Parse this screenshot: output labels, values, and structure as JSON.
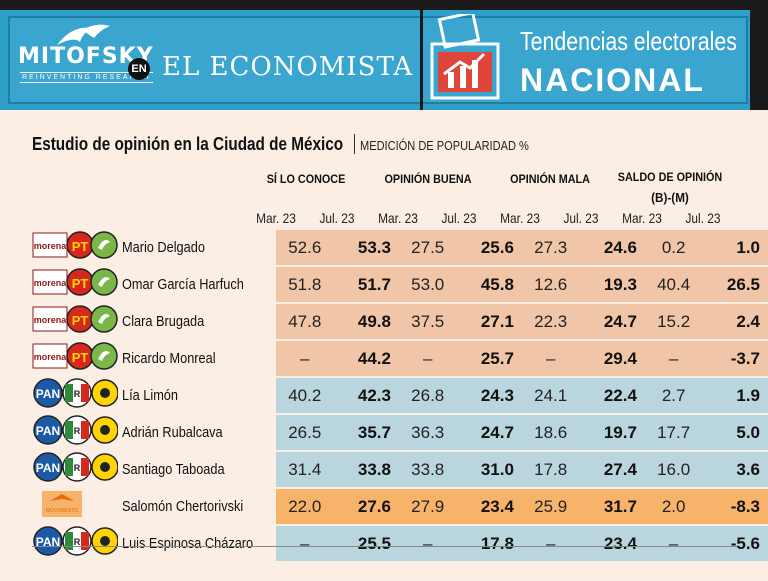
{
  "header": {
    "brand1": "MITOFSKY",
    "brand1_tagline": "REINVENTING RESEARCH",
    "connector": "EN",
    "brand2": "EL ECONOMISTA",
    "section_title": "Tendencias electorales",
    "section_subtitle": "NACIONAL"
  },
  "colors": {
    "header_blue": "#3aa6cf",
    "morena_row": "#f1c6a8",
    "pan_row": "#b9d5dd",
    "mc_row": "#f7b36a"
  },
  "chart_data": {
    "type": "table",
    "title": "Estudio de opinión en la Ciudad de México",
    "subtitle": "MEDICIÓN DE POPULARIDAD %",
    "column_groups": [
      "SÍ LO CONOCE",
      "OPINIÓN BUENA",
      "OPINIÓN MALA",
      "SALDO DE OPINIÓN",
      "(B)-(M)"
    ],
    "periods": [
      "Mar. 23",
      "Jul. 23"
    ],
    "rows": [
      {
        "coalition": "morena",
        "logos": [
          "morena",
          "PT",
          "PVEM"
        ],
        "name": "Mario Delgado",
        "values": [
          "52.6",
          "53.3",
          "27.5",
          "25.6",
          "27.3",
          "24.6",
          "0.2",
          "1.0"
        ]
      },
      {
        "coalition": "morena",
        "logos": [
          "morena",
          "PT",
          "PVEM"
        ],
        "name": "Omar García Harfuch",
        "values": [
          "51.8",
          "51.7",
          "53.0",
          "45.8",
          "12.6",
          "19.3",
          "40.4",
          "26.5"
        ]
      },
      {
        "coalition": "morena",
        "logos": [
          "morena",
          "PT",
          "PVEM"
        ],
        "name": "Clara Brugada",
        "values": [
          "47.8",
          "49.8",
          "37.5",
          "27.1",
          "22.3",
          "24.7",
          "15.2",
          "2.4"
        ]
      },
      {
        "coalition": "morena",
        "logos": [
          "morena",
          "PT",
          "PVEM"
        ],
        "name": "Ricardo Monreal",
        "values": [
          "–",
          "44.2",
          "–",
          "25.7",
          "–",
          "29.4",
          "–",
          "-3.7"
        ]
      },
      {
        "coalition": "pan",
        "logos": [
          "PAN",
          "PRI",
          "PRD"
        ],
        "name": "Lía Limón",
        "values": [
          "40.2",
          "42.3",
          "26.8",
          "24.3",
          "24.1",
          "22.4",
          "2.7",
          "1.9"
        ]
      },
      {
        "coalition": "pan",
        "logos": [
          "PAN",
          "PRI",
          "PRD"
        ],
        "name": "Adrián Rubalcava",
        "values": [
          "26.5",
          "35.7",
          "36.3",
          "24.7",
          "18.6",
          "19.7",
          "17.7",
          "5.0"
        ]
      },
      {
        "coalition": "pan",
        "logos": [
          "PAN",
          "PRI",
          "PRD"
        ],
        "name": "Santiago Taboada",
        "values": [
          "31.4",
          "33.8",
          "33.8",
          "31.0",
          "17.8",
          "27.4",
          "16.0",
          "3.6"
        ]
      },
      {
        "coalition": "mc",
        "logos": [
          "MC"
        ],
        "name": "Salomón Chertorivski",
        "values": [
          "22.0",
          "27.6",
          "27.9",
          "23.4",
          "25.9",
          "31.7",
          "2.0",
          "-8.3"
        ]
      },
      {
        "coalition": "pan",
        "logos": [
          "PAN",
          "PRI",
          "PRD"
        ],
        "name": "Luis Espinosa Cházaro",
        "values": [
          "–",
          "25.5",
          "–",
          "17.8",
          "–",
          "23.4",
          "–",
          "-5.6"
        ]
      }
    ]
  }
}
